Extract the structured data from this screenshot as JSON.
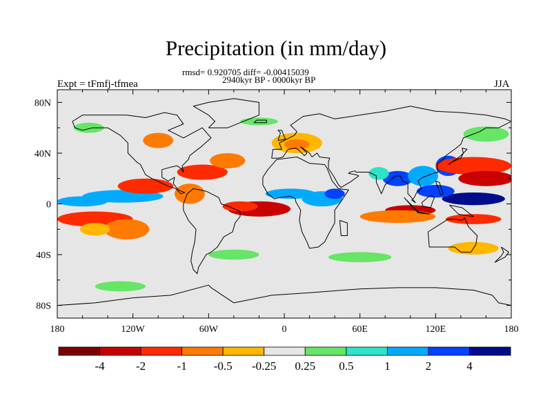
{
  "chart_data": {
    "type": "heatmap",
    "title": "Precipitation (in mm/day)",
    "subtitle_stats": "rmsd= 0.920705 diff= -0.00415039",
    "subtitle_period": "2940kyr BP - 0000kyr BP",
    "left_label": "Expt = tFmfj-tfmea",
    "right_label": "JJA",
    "xlim": [
      -180,
      180
    ],
    "ylim": [
      -90,
      90
    ],
    "x_ticks": [
      {
        "value": -180,
        "label": "180"
      },
      {
        "value": -120,
        "label": "120W"
      },
      {
        "value": -60,
        "label": "60W"
      },
      {
        "value": 0,
        "label": "0"
      },
      {
        "value": 60,
        "label": "60E"
      },
      {
        "value": 120,
        "label": "120E"
      },
      {
        "value": 180,
        "label": "180"
      }
    ],
    "y_ticks": [
      {
        "value": 80,
        "label": "80N"
      },
      {
        "value": 40,
        "label": "40N"
      },
      {
        "value": 0,
        "label": "0"
      },
      {
        "value": -40,
        "label": "40S"
      },
      {
        "value": -80,
        "label": "80S"
      }
    ],
    "colorbar": {
      "colors": [
        "#7a0000",
        "#c80000",
        "#ff2a00",
        "#ff7a00",
        "#ffb700",
        "#e6e6e6",
        "#66e566",
        "#2ae5c8",
        "#00aaff",
        "#0042ff",
        "#000c8c"
      ],
      "labels": [
        "-4",
        "-2",
        "-1",
        "-0.5",
        "-0.25",
        "0.25",
        "0.5",
        "1",
        "2",
        "4"
      ]
    },
    "anomaly_regions": [
      {
        "lon": -128,
        "lat": 6,
        "rx": 32,
        "ry": 5,
        "level": 8
      },
      {
        "lon": -160,
        "lat": 2,
        "rx": 20,
        "ry": 4,
        "level": 8
      },
      {
        "lon": -110,
        "lat": 14,
        "rx": 22,
        "ry": 6,
        "level": 2
      },
      {
        "lon": -150,
        "lat": -12,
        "rx": 30,
        "ry": 6,
        "level": 2
      },
      {
        "lon": -125,
        "lat": -20,
        "rx": 18,
        "ry": 8,
        "level": 3
      },
      {
        "lon": -150,
        "lat": -20,
        "rx": 12,
        "ry": 5,
        "level": 4
      },
      {
        "lon": -75,
        "lat": 8,
        "rx": 12,
        "ry": 8,
        "level": 3
      },
      {
        "lon": -65,
        "lat": 25,
        "rx": 20,
        "ry": 6,
        "level": 2
      },
      {
        "lon": -45,
        "lat": 34,
        "rx": 14,
        "ry": 6,
        "level": 3
      },
      {
        "lon": -20,
        "lat": -4,
        "rx": 25,
        "ry": 6,
        "level": 1
      },
      {
        "lon": -35,
        "lat": -2,
        "rx": 14,
        "ry": 4,
        "level": 2
      },
      {
        "lon": 5,
        "lat": 8,
        "rx": 20,
        "ry": 4,
        "level": 8
      },
      {
        "lon": 30,
        "lat": 4,
        "rx": 16,
        "ry": 6,
        "level": 8
      },
      {
        "lon": 40,
        "lat": 8,
        "rx": 8,
        "ry": 4,
        "level": 9
      },
      {
        "lon": 10,
        "lat": 48,
        "rx": 20,
        "ry": 8,
        "level": 4
      },
      {
        "lon": 10,
        "lat": 47,
        "rx": 10,
        "ry": 4,
        "level": 3
      },
      {
        "lon": -40,
        "lat": -40,
        "rx": 20,
        "ry": 4,
        "level": 6
      },
      {
        "lon": 60,
        "lat": -42,
        "rx": 25,
        "ry": 4,
        "level": 6
      },
      {
        "lon": -130,
        "lat": -65,
        "rx": 20,
        "ry": 4,
        "level": 6
      },
      {
        "lon": 90,
        "lat": 20,
        "rx": 12,
        "ry": 6,
        "level": 9
      },
      {
        "lon": 75,
        "lat": 24,
        "rx": 8,
        "ry": 5,
        "level": 7
      },
      {
        "lon": 110,
        "lat": 22,
        "rx": 12,
        "ry": 8,
        "level": 8
      },
      {
        "lon": 130,
        "lat": 30,
        "rx": 10,
        "ry": 8,
        "level": 9
      },
      {
        "lon": 150,
        "lat": 30,
        "rx": 30,
        "ry": 7,
        "level": 2
      },
      {
        "lon": 160,
        "lat": 20,
        "rx": 22,
        "ry": 6,
        "level": 1
      },
      {
        "lon": 150,
        "lat": 4,
        "rx": 25,
        "ry": 5,
        "level": 10
      },
      {
        "lon": 120,
        "lat": 10,
        "rx": 15,
        "ry": 5,
        "level": 9
      },
      {
        "lon": 100,
        "lat": -5,
        "rx": 20,
        "ry": 4,
        "level": 1
      },
      {
        "lon": 150,
        "lat": -12,
        "rx": 22,
        "ry": 4,
        "level": 2
      },
      {
        "lon": 90,
        "lat": -10,
        "rx": 30,
        "ry": 5,
        "level": 3
      },
      {
        "lon": 150,
        "lat": -35,
        "rx": 20,
        "ry": 5,
        "level": 4
      },
      {
        "lon": 160,
        "lat": 55,
        "rx": 18,
        "ry": 6,
        "level": 6
      },
      {
        "lon": -100,
        "lat": 50,
        "rx": 12,
        "ry": 6,
        "level": 3
      },
      {
        "lon": -155,
        "lat": 60,
        "rx": 12,
        "ry": 4,
        "level": 6
      },
      {
        "lon": -20,
        "lat": 65,
        "rx": 15,
        "ry": 3,
        "level": 6
      }
    ],
    "coastlines": [
      [
        [
          -168,
          65
        ],
        [
          -160,
          70
        ],
        [
          -140,
          70
        ],
        [
          -125,
          70
        ],
        [
          -110,
          68
        ],
        [
          -95,
          72
        ],
        [
          -85,
          70
        ],
        [
          -80,
          63
        ],
        [
          -92,
          58
        ],
        [
          -80,
          52
        ],
        [
          -65,
          60
        ],
        [
          -58,
          52
        ],
        [
          -66,
          45
        ],
        [
          -70,
          42
        ],
        [
          -75,
          38
        ],
        [
          -76,
          35
        ],
        [
          -81,
          30
        ],
        [
          -80,
          25
        ],
        [
          -82,
          28
        ],
        [
          -85,
          30
        ],
        [
          -90,
          29
        ],
        [
          -97,
          27
        ],
        [
          -97,
          21
        ],
        [
          -92,
          18
        ],
        [
          -87,
          21
        ],
        [
          -88,
          16
        ],
        [
          -84,
          11
        ],
        [
          -79,
          9
        ],
        [
          -82,
          8
        ],
        [
          -86,
          12
        ],
        [
          -92,
          14
        ],
        [
          -105,
          20
        ],
        [
          -110,
          23
        ],
        [
          -114,
          31
        ],
        [
          -117,
          33
        ],
        [
          -124,
          40
        ],
        [
          -124,
          48
        ],
        [
          -130,
          54
        ],
        [
          -140,
          60
        ],
        [
          -152,
          60
        ],
        [
          -160,
          58
        ],
        [
          -166,
          60
        ],
        [
          -168,
          65
        ]
      ],
      [
        [
          -77,
          8
        ],
        [
          -72,
          12
        ],
        [
          -62,
          10
        ],
        [
          -52,
          5
        ],
        [
          -50,
          0
        ],
        [
          -44,
          -2
        ],
        [
          -35,
          -6
        ],
        [
          -35,
          -10
        ],
        [
          -39,
          -15
        ],
        [
          -41,
          -22
        ],
        [
          -48,
          -26
        ],
        [
          -53,
          -34
        ],
        [
          -58,
          -38
        ],
        [
          -62,
          -40
        ],
        [
          -65,
          -45
        ],
        [
          -68,
          -50
        ],
        [
          -69,
          -55
        ],
        [
          -72,
          -52
        ],
        [
          -74,
          -45
        ],
        [
          -73,
          -38
        ],
        [
          -71,
          -30
        ],
        [
          -70,
          -20
        ],
        [
          -76,
          -13
        ],
        [
          -80,
          -5
        ],
        [
          -80,
          0
        ],
        [
          -77,
          8
        ]
      ],
      [
        [
          -17,
          15
        ],
        [
          -17,
          21
        ],
        [
          -13,
          27
        ],
        [
          -6,
          35
        ],
        [
          10,
          37
        ],
        [
          20,
          32
        ],
        [
          32,
          31
        ],
        [
          34,
          28
        ],
        [
          38,
          18
        ],
        [
          43,
          12
        ],
        [
          51,
          11
        ],
        [
          45,
          2
        ],
        [
          40,
          -5
        ],
        [
          40,
          -15
        ],
        [
          35,
          -24
        ],
        [
          32,
          -30
        ],
        [
          27,
          -34
        ],
        [
          20,
          -35
        ],
        [
          18,
          -30
        ],
        [
          14,
          -22
        ],
        [
          12,
          -13
        ],
        [
          13,
          -5
        ],
        [
          9,
          2
        ],
        [
          9,
          4
        ],
        [
          5,
          6
        ],
        [
          -4,
          5
        ],
        [
          -8,
          4
        ],
        [
          -13,
          8
        ],
        [
          -17,
          15
        ]
      ],
      [
        [
          44,
          -13
        ],
        [
          50,
          -15
        ],
        [
          50,
          -25
        ],
        [
          45,
          -25
        ],
        [
          44,
          -13
        ]
      ],
      [
        [
          -10,
          36
        ],
        [
          -9,
          43
        ],
        [
          -2,
          43
        ],
        [
          -4,
          48
        ],
        [
          2,
          51
        ],
        [
          8,
          54
        ],
        [
          10,
          57
        ],
        [
          5,
          62
        ],
        [
          15,
          69
        ],
        [
          28,
          71
        ],
        [
          40,
          67
        ],
        [
          60,
          70
        ],
        [
          80,
          73
        ],
        [
          100,
          77
        ],
        [
          120,
          73
        ],
        [
          140,
          72
        ],
        [
          160,
          70
        ],
        [
          175,
          67
        ],
        [
          180,
          65
        ],
        [
          170,
          60
        ],
        [
          160,
          60
        ],
        [
          155,
          57
        ],
        [
          142,
          52
        ],
        [
          140,
          47
        ],
        [
          135,
          43
        ],
        [
          128,
          38
        ],
        [
          126,
          35
        ],
        [
          121,
          31
        ],
        [
          122,
          25
        ],
        [
          118,
          24
        ],
        [
          110,
          21
        ],
        [
          106,
          18
        ],
        [
          109,
          12
        ],
        [
          105,
          9
        ],
        [
          103,
          5
        ],
        [
          101,
          3
        ],
        [
          104,
          1
        ],
        [
          100,
          6
        ],
        [
          98,
          8
        ],
        [
          98,
          16
        ],
        [
          94,
          18
        ],
        [
          92,
          22
        ],
        [
          88,
          22
        ],
        [
          80,
          15
        ],
        [
          77,
          8
        ],
        [
          73,
          17
        ],
        [
          73,
          22
        ],
        [
          67,
          25
        ],
        [
          57,
          25
        ],
        [
          56,
          26
        ],
        [
          52,
          25
        ],
        [
          51,
          24
        ],
        [
          57,
          23
        ],
        [
          59,
          22
        ],
        [
          52,
          17
        ],
        [
          45,
          13
        ],
        [
          43,
          15
        ],
        [
          39,
          22
        ],
        [
          35,
          28
        ],
        [
          35,
          33
        ],
        [
          36,
          36
        ],
        [
          28,
          37
        ],
        [
          26,
          40
        ],
        [
          22,
          37
        ],
        [
          20,
          40
        ],
        [
          13,
          45
        ],
        [
          18,
          40
        ],
        [
          16,
          38
        ],
        [
          12,
          42
        ],
        [
          9,
          44
        ],
        [
          3,
          43
        ],
        [
          -1,
          37
        ],
        [
          -5,
          36
        ],
        [
          -10,
          36
        ]
      ],
      [
        [
          -5,
          50
        ],
        [
          -3,
          56
        ],
        [
          -5,
          58
        ],
        [
          -2,
          58
        ],
        [
          0,
          53
        ],
        [
          1,
          51
        ],
        [
          -5,
          50
        ]
      ],
      [
        [
          -24,
          64
        ],
        [
          -22,
          66
        ],
        [
          -14,
          66
        ],
        [
          -14,
          64
        ],
        [
          -24,
          64
        ]
      ],
      [
        [
          -60,
          60
        ],
        [
          -45,
          60
        ],
        [
          -20,
          70
        ],
        [
          -20,
          80
        ],
        [
          -40,
          83
        ],
        [
          -60,
          80
        ],
        [
          -72,
          77
        ],
        [
          -60,
          70
        ],
        [
          -55,
          65
        ],
        [
          -60,
          60
        ]
      ],
      [
        [
          114,
          -22
        ],
        [
          115,
          -34
        ],
        [
          123,
          -34
        ],
        [
          135,
          -34
        ],
        [
          140,
          -38
        ],
        [
          148,
          -38
        ],
        [
          152,
          -32
        ],
        [
          153,
          -25
        ],
        [
          146,
          -18
        ],
        [
          143,
          -11
        ],
        [
          141,
          -13
        ],
        [
          135,
          -12
        ],
        [
          130,
          -12
        ],
        [
          122,
          -17
        ],
        [
          114,
          -22
        ]
      ],
      [
        [
          95,
          5
        ],
        [
          106,
          -6
        ],
        [
          104,
          -5
        ],
        [
          95,
          5
        ]
      ],
      [
        [
          105,
          -6
        ],
        [
          115,
          -8
        ],
        [
          106,
          -7
        ],
        [
          105,
          -6
        ]
      ],
      [
        [
          109,
          1
        ],
        [
          116,
          7
        ],
        [
          119,
          5
        ],
        [
          117,
          0
        ],
        [
          116,
          -3
        ],
        [
          110,
          -2
        ],
        [
          109,
          1
        ]
      ],
      [
        [
          131,
          -1
        ],
        [
          141,
          -3
        ],
        [
          150,
          -10
        ],
        [
          143,
          -9
        ],
        [
          138,
          -8
        ],
        [
          131,
          -1
        ]
      ],
      [
        [
          130,
          31
        ],
        [
          135,
          34
        ],
        [
          140,
          36
        ],
        [
          142,
          40
        ],
        [
          141,
          44
        ],
        [
          145,
          43
        ],
        [
          140,
          38
        ],
        [
          136,
          35
        ],
        [
          130,
          31
        ]
      ],
      [
        [
          120,
          18
        ],
        [
          123,
          17
        ],
        [
          126,
          8
        ],
        [
          124,
          7
        ],
        [
          120,
          18
        ]
      ],
      [
        [
          172,
          -34
        ],
        [
          178,
          -38
        ],
        [
          175,
          -42
        ],
        [
          167,
          -46
        ],
        [
          172,
          -41
        ],
        [
          174,
          -38
        ],
        [
          172,
          -34
        ]
      ],
      [
        [
          -180,
          -80
        ],
        [
          -150,
          -78
        ],
        [
          -120,
          -74
        ],
        [
          -90,
          -72
        ],
        [
          -60,
          -64
        ],
        [
          -58,
          -66
        ],
        [
          -40,
          -78
        ],
        [
          -10,
          -72
        ],
        [
          20,
          -70
        ],
        [
          60,
          -67
        ],
        [
          90,
          -66
        ],
        [
          120,
          -66
        ],
        [
          150,
          -68
        ],
        [
          165,
          -72
        ],
        [
          170,
          -78
        ],
        [
          180,
          -80
        ]
      ]
    ]
  }
}
